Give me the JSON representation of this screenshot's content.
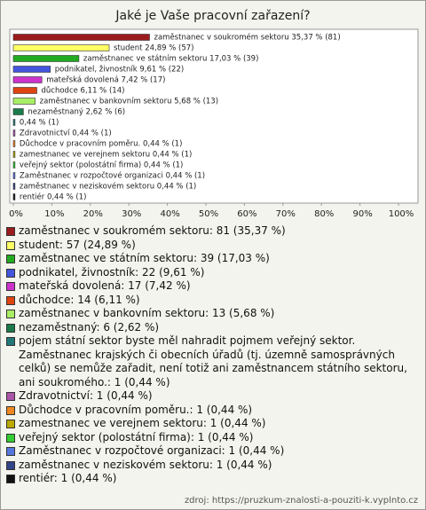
{
  "chart_data": {
    "type": "bar",
    "title": "Jaké je Vaše pracovní zařazení?",
    "values": [
      35.37,
      24.89,
      17.03,
      9.61,
      7.42,
      6.11,
      5.68,
      2.62,
      0.44,
      0.44,
      0.44,
      0.44,
      0.44,
      0.44,
      0.44,
      0.44
    ],
    "value_labels": [
      "zaměstnanec v soukromém sektoru 35,37 % (81)",
      "student 24,89 % (57)",
      "zaměstnanec ve státním sektoru 17,03 % (39)",
      "podnikatel, živnostník 9,61 % (22)",
      "mateřská dovolená 7,42 % (17)",
      "důchodce 6,11 % (14)",
      "zaměstnanec v bankovním sektoru 5,68 % (13)",
      "nezaměstnaný 2,62 % (6)",
      "0,44 % (1)",
      "Zdravotnictví 0,44 % (1)",
      "Důchodce v pracovním poměru. 0,44 % (1)",
      "zamestnanec ve verejnem sektoru 0,44 % (1)",
      "veřejný sektor (polostátní firma) 0,44 % (1)",
      "Zaměstnanec v rozpočtové organizaci 0,44 % (1)",
      "zaměstnanec v neziskovém sektoru 0,44 % (1)",
      "rentiér 0,44 % (1)"
    ],
    "colors": [
      "#9b1c1c",
      "#ffff66",
      "#22aa22",
      "#4455dd",
      "#cc33cc",
      "#dd4411",
      "#aaee66",
      "#1a7a4a",
      "#227777",
      "#aa55aa",
      "#ee8822",
      "#bbaa00",
      "#33cc33",
      "#5577dd",
      "#334488",
      "#111111"
    ],
    "legend": [
      "zaměstnanec v soukromém sektoru: 81 (35,37 %)",
      "student: 57 (24,89 %)",
      "zaměstnanec ve státním sektoru: 39 (17,03 %)",
      "podnikatel, živnostník: 22 (9,61 %)",
      "mateřská dovolená: 17 (7,42 %)",
      "důchodce: 14 (6,11 %)",
      "zaměstnanec v bankovním sektoru: 13 (5,68 %)",
      "nezaměstnaný: 6 (2,62 %)",
      "pojem státní sektor byste měl nahradit pojmem veřejný sektor. Zaměstnanec krajských či obecních úřadů (tj. územně samosprávných celků) se nemůže zařadit, není totiž ani zaměstnancem státního sektoru, ani soukromého.: 1 (0,44 %)",
      "Zdravotnictví: 1 (0,44 %)",
      "Důchodce v pracovním poměru.: 1 (0,44 %)",
      "zamestnanec ve verejnem sektoru: 1 (0,44 %)",
      "veřejný sektor (polostátní firma): 1 (0,44 %)",
      "Zaměstnanec v rozpočtové organizaci: 1 (0,44 %)",
      "zaměstnanec v neziskovém sektoru: 1 (0,44 %)",
      "rentiér: 1 (0,44 %)"
    ],
    "xlim": [
      0,
      100
    ],
    "xticks": [
      {
        "value": 0,
        "label": "0%"
      },
      {
        "value": 10,
        "label": "10%"
      },
      {
        "value": 20,
        "label": "20%"
      },
      {
        "value": 30,
        "label": "30%"
      },
      {
        "value": 40,
        "label": "40%"
      },
      {
        "value": 50,
        "label": "50%"
      },
      {
        "value": 60,
        "label": "60%"
      },
      {
        "value": 70,
        "label": "70%"
      },
      {
        "value": 80,
        "label": "80%"
      },
      {
        "value": 90,
        "label": "90%"
      },
      {
        "value": 100,
        "label": "100%"
      }
    ],
    "source": "zdroj: https://pruzkum-znalosti-a-pouziti-k.vyplnto.cz"
  }
}
